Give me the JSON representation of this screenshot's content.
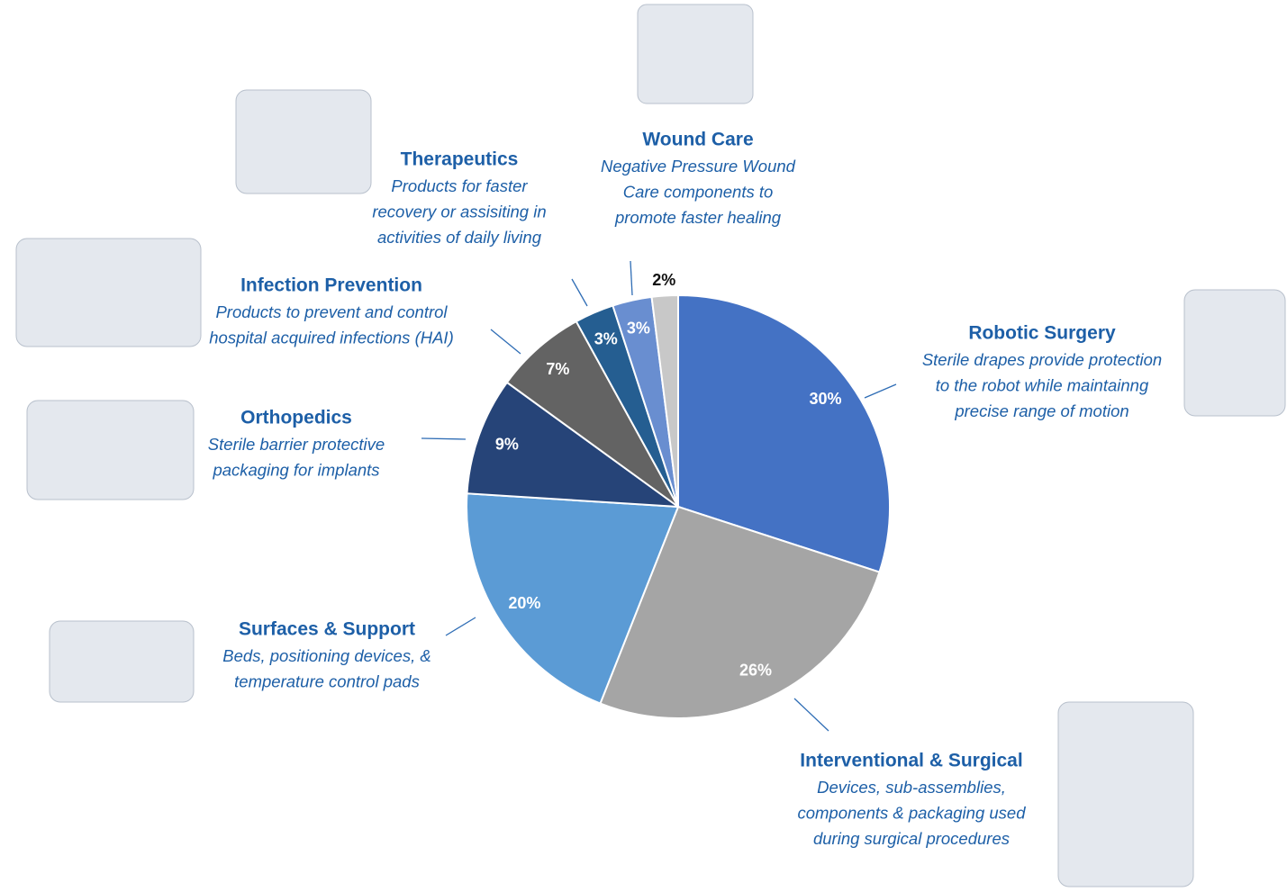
{
  "chart_data": {
    "type": "pie",
    "categories": [
      "Robotic Surgery",
      "Interventional & Surgical",
      "Surfaces & Support",
      "Orthopedics",
      "Infection Prevention",
      "Therapeutics",
      "Wound Care",
      null
    ],
    "descriptions": [
      [
        "Sterile drapes provide protection",
        "to the robot while maintainng",
        "precise range of motion"
      ],
      [
        "Devices, sub-assemblies,",
        "components & packaging used",
        "during surgical procedures"
      ],
      [
        "Beds, positioning devices, &",
        "temperature control pads"
      ],
      [
        "Sterile barrier protective",
        "packaging for implants"
      ],
      [
        "Products to prevent and control",
        "hospital acquired infections (HAI)"
      ],
      [
        "Products for faster",
        "recovery or assisiting in",
        "activities of daily living"
      ],
      [
        "Negative Pressure Wound",
        "Care components to",
        "promote faster healing"
      ],
      null
    ],
    "values": [
      30,
      26,
      20,
      9,
      7,
      3,
      3,
      2
    ],
    "value_labels": [
      "30%",
      "26%",
      "20%",
      "9%",
      "7%",
      "3%",
      "3%",
      "2%"
    ],
    "colors": [
      "#4472c4",
      "#a5a5a5",
      "#5b9bd5",
      "#264478",
      "#636363",
      "#255e91",
      "#698ed0",
      "#c8c8c8"
    ]
  }
}
